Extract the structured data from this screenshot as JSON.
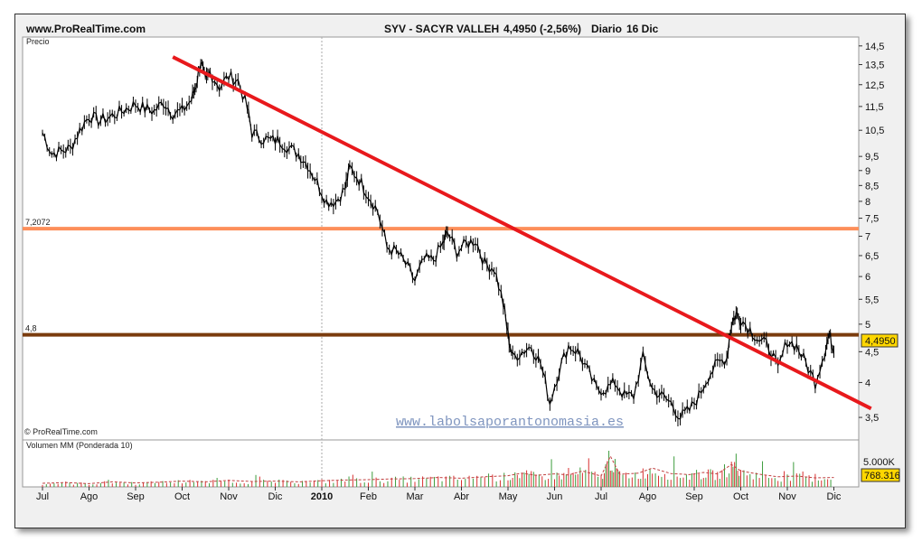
{
  "header": {
    "site": "www.ProRealTime.com",
    "instrument": "SYV - SACYR VALLEH",
    "price_change": "4,4950 (-2,56%)",
    "period": "Diario",
    "date": "16 Dic"
  },
  "price_panel": {
    "label": "Precio",
    "copyright": "© ProRealTime.com",
    "watermark": "www.labolsaporantonomasia.es",
    "last_price_badge": "4,4950"
  },
  "volume_panel": {
    "label": "Volumen MM (Ponderada 10)",
    "axis_label": "5.000K",
    "last_volume_badge": "768.316"
  },
  "colors": {
    "trendline": "#e8191c",
    "resistance": "#fd8f5a",
    "support": "#7a3c0e",
    "candle": "#000000",
    "up_bar": "#3c9c3c",
    "down_bar": "#d83030",
    "badge": "#ffd700",
    "watermark": "#7f95bf"
  },
  "chart_data": {
    "type": "line",
    "y_scale": "log",
    "y_ticks": [
      "14,5",
      "13,5",
      "12,5",
      "11,5",
      "10,5",
      "9,5",
      "9",
      "8,5",
      "8",
      "7,5",
      "7",
      "6,5",
      "6",
      "5,5",
      "5",
      "4,5",
      "4",
      "3,5"
    ],
    "x_ticks": [
      "Jul",
      "Ago",
      "Sep",
      "Oct",
      "Nov",
      "Dic",
      "2010",
      "Feb",
      "Mar",
      "Abr",
      "May",
      "Jun",
      "Jul",
      "Ago",
      "Sep",
      "Oct",
      "Nov",
      "Dic"
    ],
    "ylim": [
      3.2,
      15.0
    ],
    "horizontal_lines": [
      {
        "label": "7,2072",
        "value": 7.2072
      },
      {
        "label": "4,8",
        "value": 4.8
      }
    ],
    "trendline": {
      "from": {
        "month_index": 2.8,
        "value": 13.9
      },
      "to": {
        "month_index": 17.8,
        "value": 3.62
      }
    },
    "price_series": [
      [
        0.0,
        10.4
      ],
      [
        0.2,
        9.6
      ],
      [
        0.4,
        9.7
      ],
      [
        0.6,
        9.8
      ],
      [
        0.8,
        10.5
      ],
      [
        1.0,
        11.1
      ],
      [
        1.2,
        10.9
      ],
      [
        1.4,
        11.0
      ],
      [
        1.6,
        11.2
      ],
      [
        1.8,
        11.4
      ],
      [
        2.0,
        11.6
      ],
      [
        2.2,
        11.4
      ],
      [
        2.4,
        11.3
      ],
      [
        2.6,
        11.7
      ],
      [
        2.8,
        11.2
      ],
      [
        3.0,
        11.3
      ],
      [
        3.2,
        11.8
      ],
      [
        3.3,
        12.5
      ],
      [
        3.4,
        13.7
      ],
      [
        3.5,
        12.6
      ],
      [
        3.6,
        13.1
      ],
      [
        3.8,
        12.4
      ],
      [
        4.0,
        12.9
      ],
      [
        4.2,
        12.7
      ],
      [
        4.4,
        11.4
      ],
      [
        4.5,
        10.4
      ],
      [
        4.7,
        10.2
      ],
      [
        4.9,
        10.1
      ],
      [
        5.1,
        10.1
      ],
      [
        5.3,
        9.8
      ],
      [
        5.5,
        9.6
      ],
      [
        5.7,
        9.2
      ],
      [
        5.9,
        8.6
      ],
      [
        6.1,
        8.0
      ],
      [
        6.3,
        8.0
      ],
      [
        6.5,
        8.4
      ],
      [
        6.6,
        9.1
      ],
      [
        6.8,
        8.7
      ],
      [
        7.0,
        8.2
      ],
      [
        7.2,
        7.7
      ],
      [
        7.4,
        6.7
      ],
      [
        7.6,
        6.6
      ],
      [
        7.8,
        6.3
      ],
      [
        8.0,
        5.9
      ],
      [
        8.2,
        6.4
      ],
      [
        8.4,
        6.4
      ],
      [
        8.6,
        6.8
      ],
      [
        8.7,
        7.1
      ],
      [
        8.9,
        6.6
      ],
      [
        9.1,
        6.8
      ],
      [
        9.3,
        6.9
      ],
      [
        9.5,
        6.3
      ],
      [
        9.7,
        6.2
      ],
      [
        9.9,
        5.4
      ],
      [
        10.0,
        4.8
      ],
      [
        10.1,
        4.4
      ],
      [
        10.3,
        4.5
      ],
      [
        10.5,
        4.6
      ],
      [
        10.7,
        4.3
      ],
      [
        10.9,
        3.7
      ],
      [
        11.1,
        4.2
      ],
      [
        11.3,
        4.6
      ],
      [
        11.5,
        4.5
      ],
      [
        11.7,
        4.2
      ],
      [
        11.9,
        3.9
      ],
      [
        12.1,
        3.9
      ],
      [
        12.3,
        4.0
      ],
      [
        12.5,
        3.8
      ],
      [
        12.7,
        3.8
      ],
      [
        12.9,
        4.4
      ],
      [
        13.1,
        3.9
      ],
      [
        13.3,
        3.8
      ],
      [
        13.5,
        3.7
      ],
      [
        13.7,
        3.5
      ],
      [
        13.9,
        3.6
      ],
      [
        14.1,
        3.8
      ],
      [
        14.3,
        4.1
      ],
      [
        14.5,
        4.3
      ],
      [
        14.7,
        4.4
      ],
      [
        14.8,
        5.0
      ],
      [
        14.9,
        5.2
      ],
      [
        15.0,
        5.1
      ],
      [
        15.2,
        4.9
      ],
      [
        15.4,
        4.7
      ],
      [
        15.6,
        4.6
      ],
      [
        15.8,
        4.2
      ],
      [
        16.0,
        4.7
      ],
      [
        16.2,
        4.6
      ],
      [
        16.4,
        4.3
      ],
      [
        16.6,
        4.0
      ],
      [
        16.8,
        4.5
      ],
      [
        16.9,
        4.8
      ],
      [
        17.0,
        4.5
      ]
    ],
    "volume_series": [
      [
        0.0,
        1.0
      ],
      [
        0.5,
        1.2
      ],
      [
        1.0,
        0.9
      ],
      [
        1.5,
        1.4
      ],
      [
        2.0,
        1.1
      ],
      [
        2.5,
        1.3
      ],
      [
        3.0,
        1.6
      ],
      [
        3.5,
        1.4
      ],
      [
        4.0,
        1.8
      ],
      [
        4.5,
        1.5
      ],
      [
        5.0,
        1.6
      ],
      [
        5.5,
        1.4
      ],
      [
        6.0,
        1.7
      ],
      [
        6.5,
        1.9
      ],
      [
        7.0,
        2.0
      ],
      [
        7.5,
        2.2
      ],
      [
        8.0,
        2.3
      ],
      [
        8.5,
        2.6
      ],
      [
        9.0,
        2.4
      ],
      [
        9.5,
        2.8
      ],
      [
        10.0,
        3.1
      ],
      [
        10.3,
        3.8
      ],
      [
        10.6,
        3.2
      ],
      [
        11.0,
        3.6
      ],
      [
        11.3,
        3.3
      ],
      [
        11.6,
        4.4
      ],
      [
        12.0,
        3.0
      ],
      [
        12.2,
        8.5
      ],
      [
        12.4,
        3.5
      ],
      [
        12.8,
        3.8
      ],
      [
        13.1,
        5.2
      ],
      [
        13.5,
        3.7
      ],
      [
        13.9,
        3.4
      ],
      [
        14.2,
        4.0
      ],
      [
        14.5,
        3.6
      ],
      [
        14.8,
        6.2
      ],
      [
        15.0,
        4.4
      ],
      [
        15.4,
        3.5
      ],
      [
        15.8,
        2.8
      ],
      [
        16.2,
        3.0
      ],
      [
        16.6,
        2.5
      ],
      [
        17.0,
        2.6
      ]
    ]
  }
}
